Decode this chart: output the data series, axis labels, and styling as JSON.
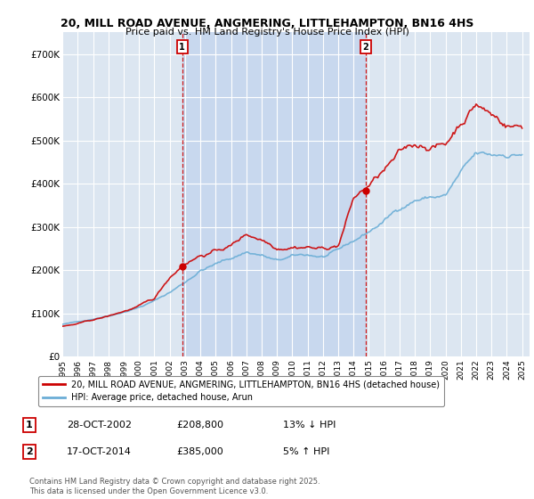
{
  "title_line1": "20, MILL ROAD AVENUE, ANGMERING, LITTLEHAMPTON, BN16 4HS",
  "title_line2": "Price paid vs. HM Land Registry's House Price Index (HPI)",
  "background_color": "#ffffff",
  "plot_bg_color": "#dce6f1",
  "plot_bg_shaded": "#c8d8ee",
  "grid_color": "#ffffff",
  "ylim": [
    0,
    750000
  ],
  "yticks": [
    0,
    100000,
    200000,
    300000,
    400000,
    500000,
    600000,
    700000
  ],
  "ytick_labels": [
    "£0",
    "£100K",
    "£200K",
    "£300K",
    "£400K",
    "£500K",
    "£600K",
    "£700K"
  ],
  "hpi_color": "#6baed6",
  "price_color": "#cc0000",
  "marker1_x": 2002.82,
  "marker1_y": 208800,
  "marker2_x": 2014.8,
  "marker2_y": 385000,
  "legend_line1": "20, MILL ROAD AVENUE, ANGMERING, LITTLEHAMPTON, BN16 4HS (detached house)",
  "legend_line2": "HPI: Average price, detached house, Arun",
  "table_row1": [
    "1",
    "28-OCT-2002",
    "£208,800",
    "13% ↓ HPI"
  ],
  "table_row2": [
    "2",
    "17-OCT-2014",
    "£385,000",
    "5% ↑ HPI"
  ],
  "footer": "Contains HM Land Registry data © Crown copyright and database right 2025.\nThis data is licensed under the Open Government Licence v3.0.",
  "xlim_left": 1995.0,
  "xlim_right": 2025.5
}
